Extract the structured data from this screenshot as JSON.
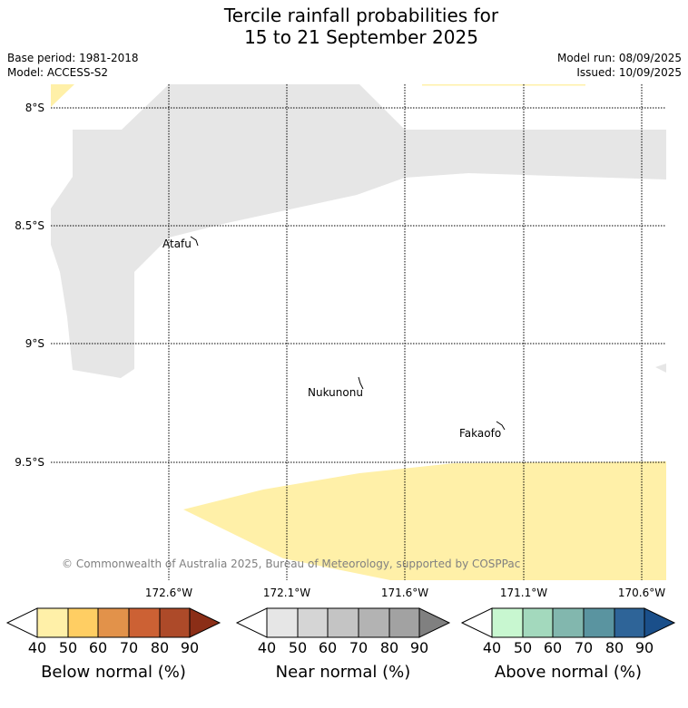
{
  "title_line1": "Tercile rainfall probabilities for",
  "title_line2": "15 to 21 September 2025",
  "base_period": "Base period: 1981-2018",
  "model": "Model: ACCESS-S2",
  "model_run": "Model run: 08/09/2025",
  "issued": "Issued: 10/09/2025",
  "lat_labels": [
    "8°S",
    "8.5°S",
    "9°S",
    "9.5°S"
  ],
  "lon_labels": [
    "172.6°W",
    "172.1°W",
    "171.6°W",
    "171.1°W",
    "170.6°W"
  ],
  "places": [
    "Atafu",
    "Nukunonu",
    "Fakaofo"
  ],
  "copyright": "© Commonwealth of Australia 2025, Bureau of Meteorology, supported by COSPPac",
  "colorbars": [
    {
      "label": "Below normal (%)",
      "ticks": [
        "40",
        "50",
        "60",
        "70",
        "80",
        "90"
      ],
      "colors": [
        "#ffffff",
        "#fff0a8",
        "#ffce63",
        "#e2924a",
        "#cc6134",
        "#ad4a29",
        "#8b2e17"
      ]
    },
    {
      "label": "Near normal (%)",
      "ticks": [
        "40",
        "50",
        "60",
        "70",
        "80",
        "90"
      ],
      "colors": [
        "#ffffff",
        "#e6e6e6",
        "#d5d5d5",
        "#c4c4c4",
        "#b3b3b3",
        "#a2a2a2",
        "#808080"
      ]
    },
    {
      "label": "Above normal (%)",
      "ticks": [
        "40",
        "50",
        "60",
        "70",
        "80",
        "90"
      ],
      "colors": [
        "#ffffff",
        "#c8f7d0",
        "#a3d9bd",
        "#82b7ae",
        "#5a94a0",
        "#2e6498",
        "#1a4f8a"
      ]
    }
  ],
  "category_colors": {
    "near_normal_40_50": "#e6e6e6",
    "below_normal_40_50": "#fff0a8"
  }
}
